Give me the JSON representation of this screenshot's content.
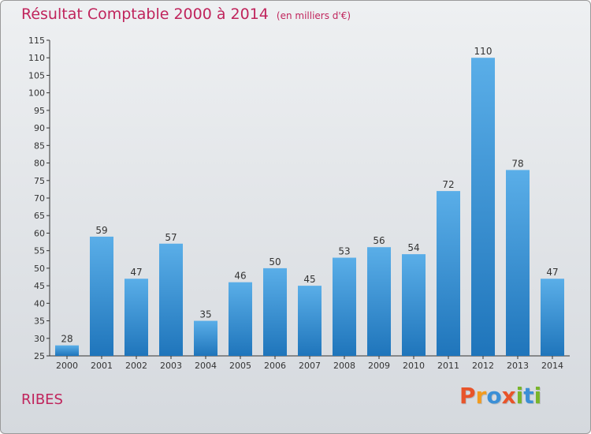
{
  "header": {
    "title": "Résultat Comptable 2000 à 2014",
    "unit": "(en milliers d'€)"
  },
  "footer": {
    "place": "RIBES",
    "brand": "Proxiti"
  },
  "colors": {
    "title": "#c0245c",
    "bar_top": "#5aaee8",
    "bar_bottom": "#1f75bb",
    "brand_letters": [
      "#e8542a",
      "#f29b1f",
      "#3b8fd6",
      "#e8542a",
      "#79b52a",
      "#3b8fd6",
      "#79b52a"
    ]
  },
  "chart_data": {
    "type": "bar",
    "title": "Résultat Comptable 2000 à 2014",
    "subtitle": "(en milliers d'€)",
    "categories": [
      "2000",
      "2001",
      "2002",
      "2003",
      "2004",
      "2005",
      "2006",
      "2007",
      "2008",
      "2009",
      "2010",
      "2011",
      "2012",
      "2013",
      "2014"
    ],
    "values": [
      28,
      59,
      47,
      57,
      35,
      46,
      50,
      45,
      53,
      56,
      54,
      72,
      110,
      78,
      47
    ],
    "ylim": [
      25,
      115
    ],
    "yticks": [
      25,
      30,
      35,
      40,
      45,
      50,
      55,
      60,
      65,
      70,
      75,
      80,
      85,
      90,
      95,
      100,
      105,
      110,
      115
    ],
    "xlabel": "",
    "ylabel": "",
    "grid": false,
    "data_labels": true
  }
}
